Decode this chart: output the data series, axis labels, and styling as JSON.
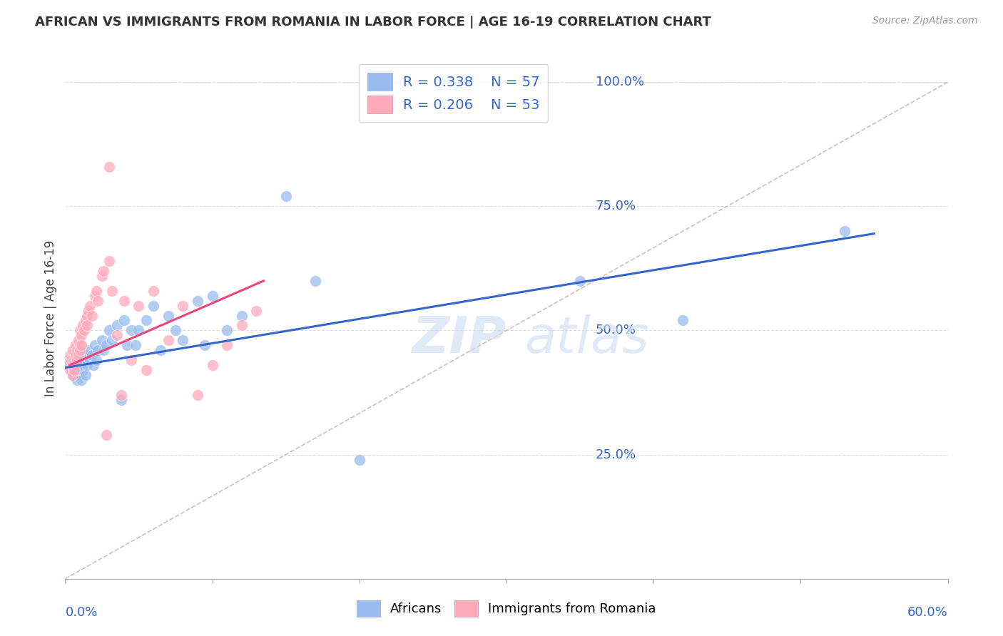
{
  "title": "AFRICAN VS IMMIGRANTS FROM ROMANIA IN LABOR FORCE | AGE 16-19 CORRELATION CHART",
  "source": "Source: ZipAtlas.com",
  "ylabel": "In Labor Force | Age 16-19",
  "xlim": [
    0.0,
    0.6
  ],
  "ylim": [
    0.0,
    1.05
  ],
  "legend_r1": "R = 0.338",
  "legend_n1": "N = 57",
  "legend_r2": "R = 0.206",
  "legend_n2": "N = 53",
  "blue_scatter": "#99BBEE",
  "pink_scatter": "#FFAABB",
  "trendline_blue": "#3366CC",
  "trendline_pink": "#EE4477",
  "ref_line_color": "#CCAAAA",
  "grid_color": "#DDDDDD",
  "ytick_right": [
    0.25,
    0.5,
    0.75,
    1.0
  ],
  "ytick_right_labels": [
    "25.0%",
    "50.0%",
    "75.0%",
    "100.0%"
  ],
  "africans_x": [
    0.002,
    0.003,
    0.004,
    0.005,
    0.005,
    0.006,
    0.007,
    0.008,
    0.008,
    0.009,
    0.01,
    0.01,
    0.01,
    0.011,
    0.011,
    0.012,
    0.012,
    0.013,
    0.014,
    0.015,
    0.015,
    0.016,
    0.017,
    0.018,
    0.019,
    0.02,
    0.021,
    0.022,
    0.025,
    0.026,
    0.028,
    0.03,
    0.032,
    0.035,
    0.038,
    0.04,
    0.042,
    0.045,
    0.048,
    0.05,
    0.055,
    0.06,
    0.065,
    0.07,
    0.075,
    0.08,
    0.09,
    0.095,
    0.1,
    0.11,
    0.12,
    0.15,
    0.17,
    0.2,
    0.35,
    0.42,
    0.53
  ],
  "africans_y": [
    0.43,
    0.44,
    0.42,
    0.41,
    0.43,
    0.42,
    0.44,
    0.4,
    0.43,
    0.41,
    0.42,
    0.44,
    0.41,
    0.45,
    0.4,
    0.43,
    0.42,
    0.44,
    0.41,
    0.45,
    0.43,
    0.46,
    0.44,
    0.45,
    0.43,
    0.47,
    0.44,
    0.46,
    0.48,
    0.46,
    0.47,
    0.5,
    0.48,
    0.51,
    0.36,
    0.52,
    0.47,
    0.5,
    0.47,
    0.5,
    0.52,
    0.55,
    0.46,
    0.53,
    0.5,
    0.48,
    0.56,
    0.47,
    0.57,
    0.5,
    0.53,
    0.77,
    0.6,
    0.24,
    0.6,
    0.52,
    0.7
  ],
  "romania_x": [
    0.002,
    0.002,
    0.003,
    0.003,
    0.004,
    0.004,
    0.005,
    0.005,
    0.005,
    0.006,
    0.006,
    0.007,
    0.007,
    0.008,
    0.008,
    0.009,
    0.009,
    0.01,
    0.01,
    0.01,
    0.011,
    0.011,
    0.012,
    0.013,
    0.014,
    0.015,
    0.015,
    0.016,
    0.017,
    0.018,
    0.02,
    0.021,
    0.022,
    0.025,
    0.026,
    0.028,
    0.03,
    0.032,
    0.035,
    0.038,
    0.04,
    0.045,
    0.05,
    0.055,
    0.06,
    0.07,
    0.08,
    0.09,
    0.1,
    0.11,
    0.12,
    0.13,
    0.03
  ],
  "romania_y": [
    0.43,
    0.44,
    0.42,
    0.45,
    0.43,
    0.44,
    0.41,
    0.46,
    0.43,
    0.44,
    0.42,
    0.47,
    0.45,
    0.46,
    0.44,
    0.48,
    0.45,
    0.5,
    0.47,
    0.46,
    0.49,
    0.47,
    0.51,
    0.5,
    0.52,
    0.53,
    0.51,
    0.54,
    0.55,
    0.53,
    0.57,
    0.58,
    0.56,
    0.61,
    0.62,
    0.29,
    0.64,
    0.58,
    0.49,
    0.37,
    0.56,
    0.44,
    0.55,
    0.42,
    0.58,
    0.48,
    0.55,
    0.37,
    0.43,
    0.47,
    0.51,
    0.54,
    0.83
  ],
  "blue_trendline_x": [
    0.0,
    0.55
  ],
  "blue_trendline_y": [
    0.425,
    0.695
  ],
  "pink_trendline_x": [
    0.003,
    0.135
  ],
  "pink_trendline_y": [
    0.43,
    0.6
  ],
  "ref_line_x": [
    0.0,
    0.6
  ],
  "ref_line_y": [
    0.0,
    1.0
  ],
  "watermark_text": "ZIPatlas",
  "watermark_color": "#CCDDF0",
  "title_fontsize": 13,
  "axis_label_fontsize": 12,
  "tick_fontsize": 13,
  "legend_fontsize": 14
}
